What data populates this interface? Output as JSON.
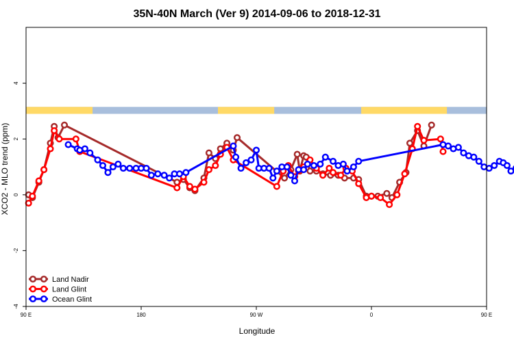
{
  "chart_data": {
    "type": "line",
    "title": "35N-40N March (Ver 9)   2014-09-06 to 2018-12-31",
    "xlabel": "Longitude",
    "ylabel": "XCO2 - MLO trend (ppm)",
    "xlim": [
      90,
      450
    ],
    "ylim": [
      -4,
      6
    ],
    "x_ticks": [
      {
        "value": 90,
        "label": "90 E"
      },
      {
        "value": 180,
        "label": "180"
      },
      {
        "value": 270,
        "label": "90 W"
      },
      {
        "value": 360,
        "label": "0"
      },
      {
        "value": 450,
        "label": "90 E"
      },
      {
        "value": 540,
        "label": "180"
      }
    ],
    "y_ticks": [
      {
        "value": -4,
        "label": "-4"
      },
      {
        "value": -2,
        "label": "-2"
      },
      {
        "value": 0,
        "label": "0"
      },
      {
        "value": 2,
        "label": "2"
      },
      {
        "value": 4,
        "label": "4"
      }
    ],
    "land_ocean_strip": {
      "y_range": [
        2.9,
        3.15
      ],
      "land_color": "#FFD966",
      "ocean_color": "#A8BEDC",
      "land_ranges": [
        [
          90,
          142
        ],
        [
          240,
          284
        ],
        [
          352,
          419
        ],
        [
          512,
          539
        ]
      ]
    },
    "legend_position": "bottom-left",
    "series": [
      {
        "name": "Land Nadir",
        "color": "#A52A2A",
        "points": [
          [
            92,
            0
          ],
          [
            95,
            -0.1
          ],
          [
            100,
            0.45
          ],
          [
            104,
            0.9
          ],
          [
            109,
            1.85
          ],
          [
            112,
            2.45
          ],
          [
            115,
            2.05
          ],
          [
            120,
            2.5
          ],
          [
            208,
            0.45
          ],
          [
            213,
            0.55
          ],
          [
            218,
            0.25
          ],
          [
            222,
            0.15
          ],
          [
            229,
            0.6
          ],
          [
            233,
            1.5
          ],
          [
            238,
            1.3
          ],
          [
            242,
            1.65
          ],
          [
            247,
            1.85
          ],
          [
            252,
            1.6
          ],
          [
            255,
            2.05
          ],
          [
            292,
            0.6
          ],
          [
            297,
            0.9
          ],
          [
            302,
            1.45
          ],
          [
            304,
            0.85
          ],
          [
            307,
            1.4
          ],
          [
            309,
            1.35
          ],
          [
            312,
            0.85
          ],
          [
            317,
            0.85
          ],
          [
            322,
            0.75
          ],
          [
            328,
            0.7
          ],
          [
            334,
            0.7
          ],
          [
            339,
            0.6
          ],
          [
            346,
            0.6
          ],
          [
            350,
            0.55
          ],
          [
            356,
            -0.05
          ],
          [
            360,
            -0.05
          ],
          [
            365,
            -0.05
          ],
          [
            372,
            0.05
          ],
          [
            376,
            -0.1
          ],
          [
            382,
            0.45
          ],
          [
            387,
            0.8
          ],
          [
            390,
            1.85
          ],
          [
            396,
            2.3
          ],
          [
            401,
            1.75
          ],
          [
            407,
            2.5
          ]
        ]
      },
      {
        "name": "Land Glint",
        "color": "#FF0000",
        "points": [
          [
            92,
            -0.3
          ],
          [
            95,
            -0.05
          ],
          [
            100,
            0.5
          ],
          [
            104,
            0.9
          ],
          [
            109,
            1.65
          ],
          [
            112,
            2.3
          ],
          [
            116,
            2.0
          ],
          [
            129,
            2.0
          ],
          [
            132,
            1.55
          ],
          [
            208,
            0.25
          ],
          [
            213,
            0.65
          ],
          [
            218,
            0.3
          ],
          [
            222,
            0.2
          ],
          [
            229,
            0.45
          ],
          [
            233,
            0.9
          ],
          [
            238,
            1.05
          ],
          [
            242,
            1.45
          ],
          [
            247,
            1.7
          ],
          [
            252,
            1.25
          ],
          [
            286,
            0.3
          ],
          [
            291,
            0.85
          ],
          [
            295,
            1.05
          ],
          [
            300,
            0.65
          ],
          [
            303,
            0.85
          ],
          [
            307,
            1.0
          ],
          [
            312,
            1.25
          ],
          [
            317,
            0.95
          ],
          [
            322,
            0.7
          ],
          [
            327,
            0.95
          ],
          [
            330,
            0.8
          ],
          [
            336,
            0.7
          ],
          [
            340,
            0.95
          ],
          [
            345,
            0.85
          ],
          [
            350,
            0.4
          ],
          [
            356,
            -0.1
          ],
          [
            360,
            -0.05
          ],
          [
            367,
            -0.1
          ],
          [
            374,
            -0.35
          ],
          [
            380,
            0.0
          ],
          [
            386,
            0.75
          ],
          [
            392,
            1.65
          ],
          [
            396,
            2.45
          ],
          [
            401,
            1.95
          ],
          [
            414,
            2.0
          ],
          [
            416,
            1.55
          ]
        ]
      },
      {
        "name": "Ocean Glint",
        "color": "#0000FF",
        "points": [
          [
            123,
            1.8
          ],
          [
            130,
            1.65
          ],
          [
            132,
            1.6
          ],
          [
            136,
            1.65
          ],
          [
            140,
            1.5
          ],
          [
            146,
            1.25
          ],
          [
            150,
            1.05
          ],
          [
            154,
            0.8
          ],
          [
            158,
            1.0
          ],
          [
            162,
            1.1
          ],
          [
            166,
            0.95
          ],
          [
            171,
            0.95
          ],
          [
            176,
            0.95
          ],
          [
            180,
            0.95
          ],
          [
            184,
            0.95
          ],
          [
            188,
            0.7
          ],
          [
            193,
            0.75
          ],
          [
            198,
            0.7
          ],
          [
            202,
            0.6
          ],
          [
            206,
            0.75
          ],
          [
            210,
            0.75
          ],
          [
            215,
            0.8
          ],
          [
            252,
            1.75
          ],
          [
            254,
            1.35
          ],
          [
            258,
            0.95
          ],
          [
            262,
            1.15
          ],
          [
            266,
            1.25
          ],
          [
            270,
            1.6
          ],
          [
            272,
            0.95
          ],
          [
            276,
            0.95
          ],
          [
            280,
            0.95
          ],
          [
            283,
            0.6
          ],
          [
            286,
            0.85
          ],
          [
            290,
            1.0
          ],
          [
            294,
            1.0
          ],
          [
            297,
            0.7
          ],
          [
            300,
            0.5
          ],
          [
            303,
            0.9
          ],
          [
            307,
            0.9
          ],
          [
            310,
            1.1
          ],
          [
            315,
            1.05
          ],
          [
            320,
            1.1
          ],
          [
            324,
            1.35
          ],
          [
            330,
            1.2
          ],
          [
            334,
            1.05
          ],
          [
            338,
            1.1
          ],
          [
            341,
            0.85
          ],
          [
            346,
            1.0
          ],
          [
            350,
            1.2
          ],
          [
            416,
            1.8
          ],
          [
            420,
            1.75
          ],
          [
            424,
            1.65
          ],
          [
            428,
            1.7
          ],
          [
            432,
            1.5
          ],
          [
            436,
            1.4
          ],
          [
            440,
            1.35
          ],
          [
            444,
            1.2
          ],
          [
            448,
            1.0
          ],
          [
            452,
            0.95
          ],
          [
            456,
            1.05
          ],
          [
            460,
            1.2
          ],
          [
            463,
            1.15
          ],
          [
            466,
            1.05
          ],
          [
            469,
            0.85
          ],
          [
            473,
            0.95
          ],
          [
            477,
            1.05
          ],
          [
            481,
            1.15
          ],
          [
            485,
            1.1
          ]
        ]
      }
    ]
  }
}
